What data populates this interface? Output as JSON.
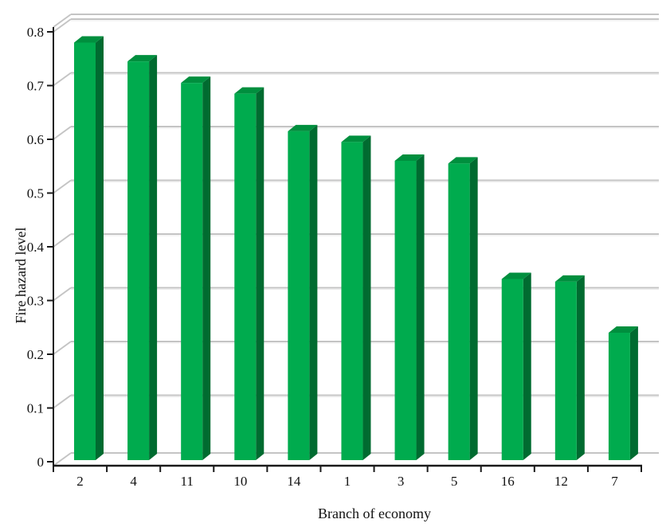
{
  "chart_data": {
    "type": "bar",
    "title": "",
    "categories": [
      "2",
      "4",
      "11",
      "10",
      "14",
      "1",
      "3",
      "5",
      "16",
      "12",
      "7"
    ],
    "values": [
      0.78,
      0.745,
      0.705,
      0.685,
      0.615,
      0.595,
      0.56,
      0.555,
      0.34,
      0.335,
      0.24
    ],
    "xlabel": "Branch of economy",
    "ylabel": "Fire hazard level",
    "ylim": [
      0,
      0.8
    ],
    "ytick_step": 0.1,
    "ytick_labels": [
      "0",
      "0.1",
      "0.2",
      "0.3",
      "0.4",
      "0.5",
      "0.6",
      "0.7",
      "0.8"
    ],
    "grid": true,
    "legend": false,
    "style": "3d-column",
    "colors": {
      "bar_front": "#00AB4E",
      "bar_side": "#006B30",
      "bar_top": "#008F3E",
      "gridline": "#C4C4C4",
      "gridline_highlight": "#EBEBEB",
      "axis": "#1A1A1A",
      "text": "#111111",
      "background": "#FFFFFF"
    }
  }
}
